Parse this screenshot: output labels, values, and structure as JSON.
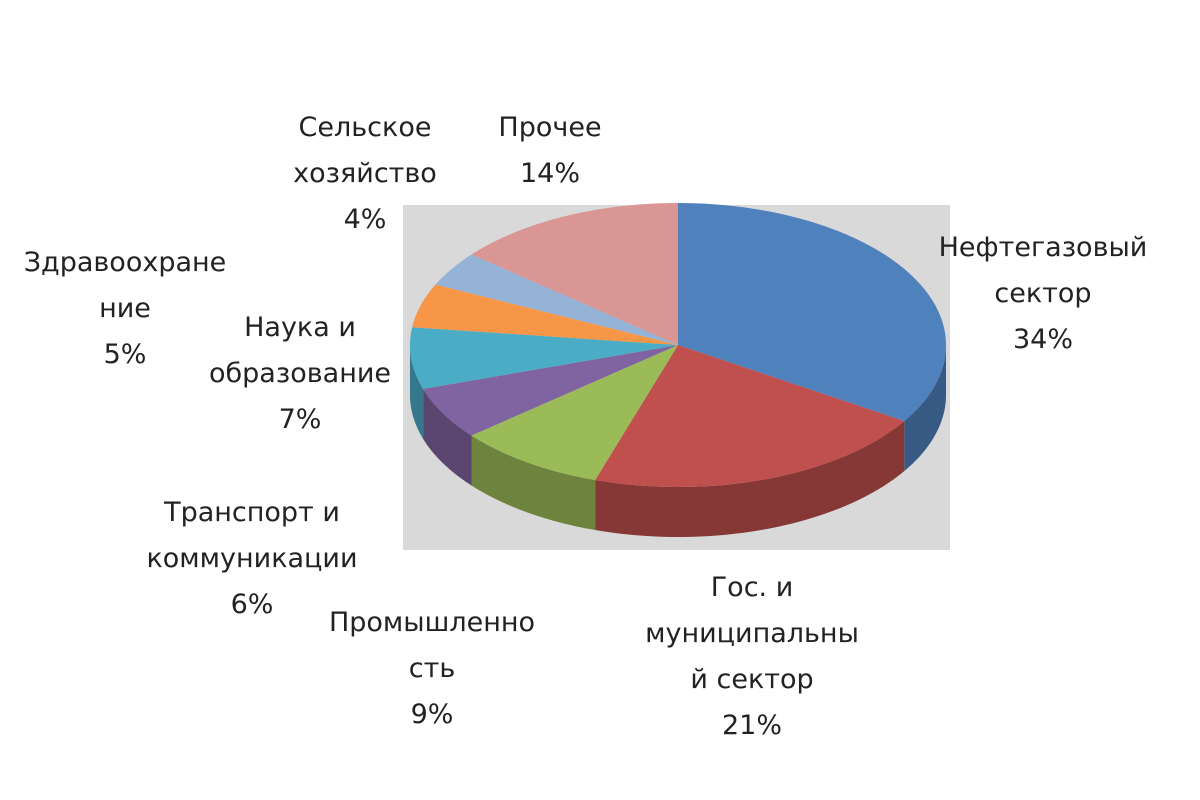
{
  "chart_data": {
    "type": "pie",
    "categories": [
      "Нефтегазовый\nсектор",
      "Гос. и\nмуниципальны\nй сектор",
      "Промышленно\nсть",
      "Транспорт и\nкоммуникации",
      "Наука и\nобразование",
      "Здравоохране\nние",
      "Сельское\nхозяйство",
      "Прочее"
    ],
    "values": [
      34,
      21,
      9,
      6,
      7,
      5,
      4,
      14
    ],
    "value_labels": [
      "34%",
      "21%",
      "9%",
      "6%",
      "7%",
      "5%",
      "4%",
      "14%"
    ],
    "colors": [
      "#4f81bd",
      "#c0504d",
      "#9bbb59",
      "#8064a2",
      "#4bacc6",
      "#f79646",
      "#95b3d7",
      "#d99694"
    ]
  }
}
